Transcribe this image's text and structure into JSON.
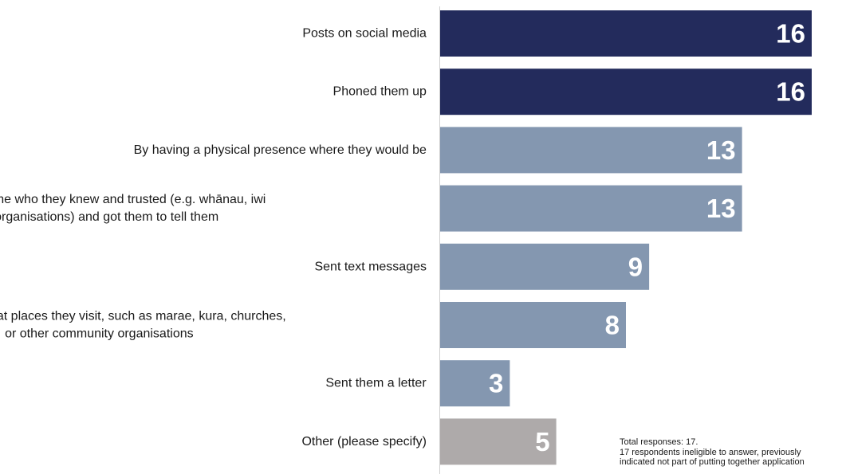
{
  "chart_data": {
    "type": "bar",
    "orientation": "horizontal",
    "categories": [
      [
        "Posts on social media"
      ],
      [
        "Phoned them up"
      ],
      [
        "By having a physical presence where they would be"
      ],
      [
        "Contacted someone who they knew and trusted (e.g. whānau, iwi",
        "or Māori organisations) and got them to tell them"
      ],
      [
        "Sent text messages"
      ],
      [
        "Put up notices at places they visit, such as marae, kura, churches,",
        "or other community organisations"
      ],
      [
        "Sent them a letter"
      ],
      [
        "Other (please specify)"
      ]
    ],
    "values": [
      16,
      16,
      13,
      13,
      9,
      8,
      3,
      5
    ],
    "colors": [
      "#232b5c",
      "#232b5c",
      "#8497b0",
      "#8497b0",
      "#8497b0",
      "#8497b0",
      "#8497b0",
      "#aeaaaa"
    ],
    "xlim": [
      0,
      16
    ],
    "title": "",
    "xlabel": "",
    "ylabel": "",
    "grid": false,
    "legend": "none"
  },
  "notes": {
    "line1": "Total responses: 17.",
    "line2": "17 respondents ineligible to answer, previously",
    "line3": "indicated not part of putting together application"
  }
}
